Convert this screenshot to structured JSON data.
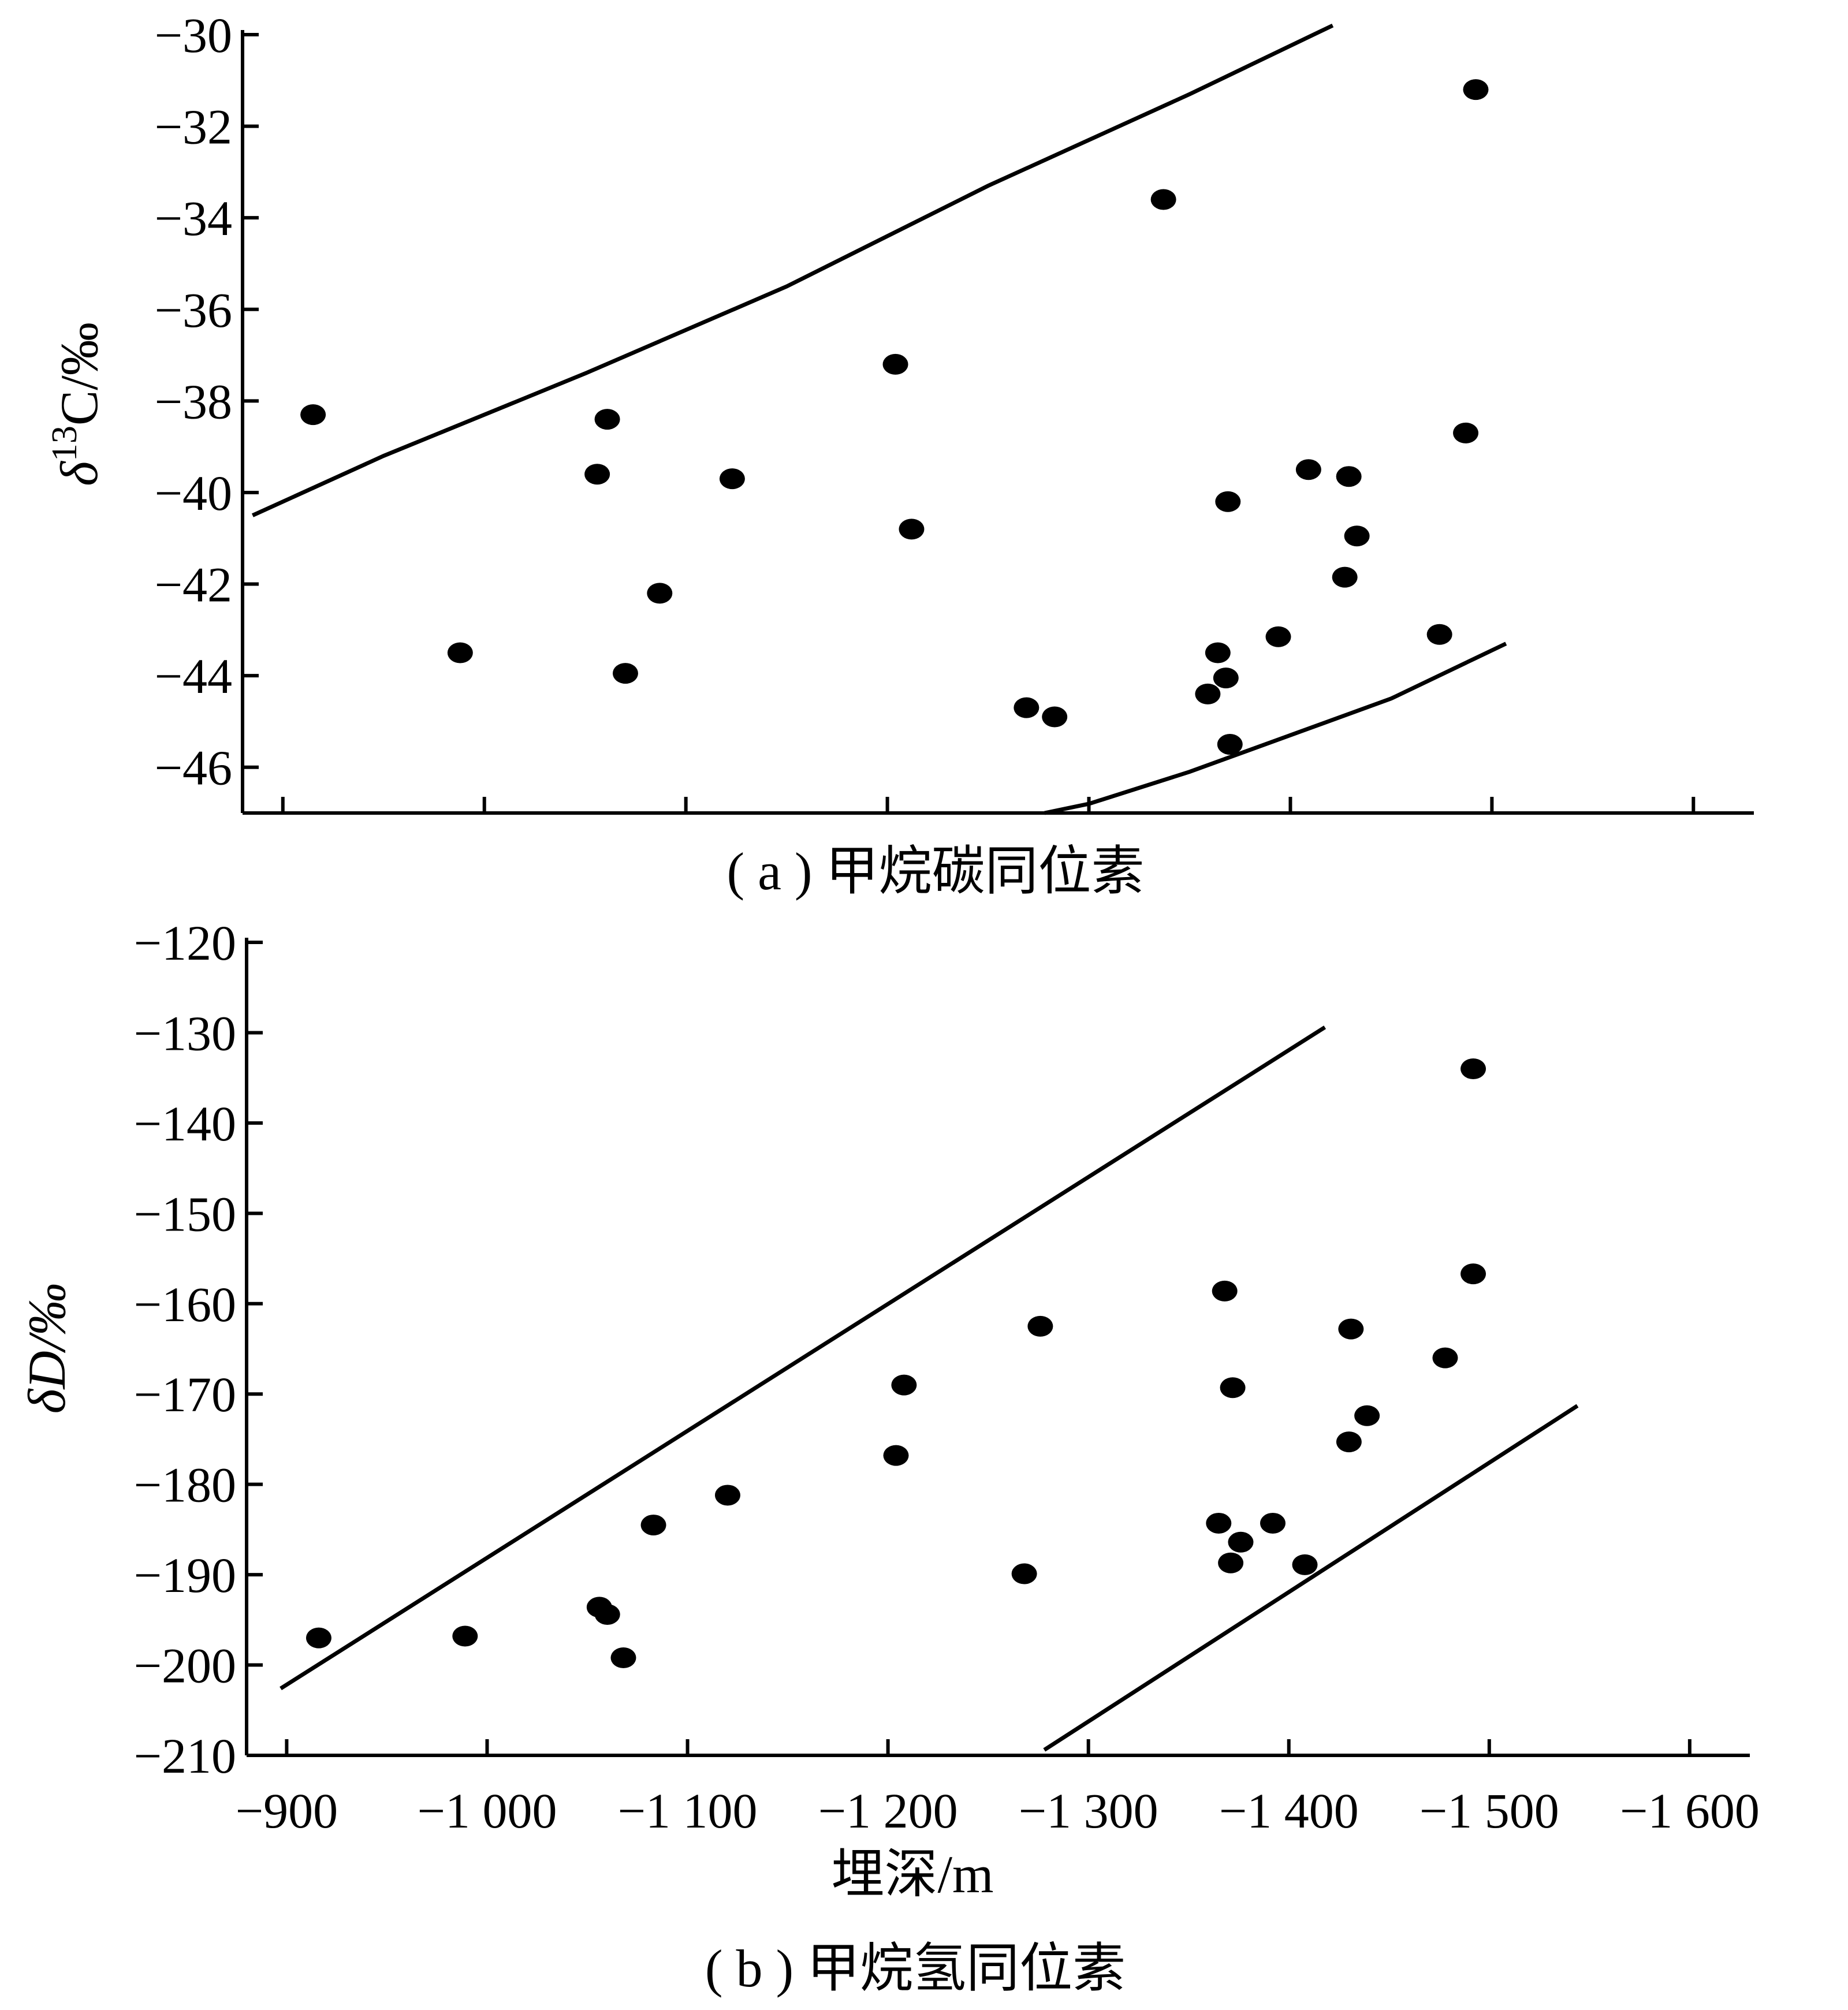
{
  "chart_data": [
    {
      "type": "scatter",
      "caption": "( a ) 甲烷碳同位素",
      "ylabel_prefix": "δ",
      "ylabel_sup": "13",
      "ylabel_suffix": "C/‰",
      "xlim": [
        -880,
        -1630
      ],
      "ylim": [
        -47,
        -30
      ],
      "yticks": [
        -30,
        -32,
        -34,
        -36,
        -38,
        -40,
        -42,
        -44,
        -46
      ],
      "ytick_labels": [
        "−30",
        "−32",
        "−34",
        "−36",
        "−38",
        "−40",
        "−42",
        "−44",
        "−46"
      ],
      "xticks": [
        -900,
        -1000,
        -1100,
        -1200,
        -1300,
        -1400,
        -1500,
        -1600
      ],
      "points": [
        {
          "x": -915,
          "y": -38.3
        },
        {
          "x": -988,
          "y": -43.5
        },
        {
          "x": -1056,
          "y": -39.6
        },
        {
          "x": -1061,
          "y": -38.4
        },
        {
          "x": -1070,
          "y": -43.95
        },
        {
          "x": -1087,
          "y": -42.2
        },
        {
          "x": -1123,
          "y": -39.7
        },
        {
          "x": -1204,
          "y": -37.2
        },
        {
          "x": -1212,
          "y": -40.8
        },
        {
          "x": -1269,
          "y": -44.7
        },
        {
          "x": -1283,
          "y": -44.9
        },
        {
          "x": -1337,
          "y": -33.6
        },
        {
          "x": -1359,
          "y": -44.4
        },
        {
          "x": -1364,
          "y": -43.5
        },
        {
          "x": -1368,
          "y": -44.05
        },
        {
          "x": -1369,
          "y": -40.2
        },
        {
          "x": -1370,
          "y": -45.5
        },
        {
          "x": -1394,
          "y": -43.15
        },
        {
          "x": -1409,
          "y": -39.5
        },
        {
          "x": -1427,
          "y": -41.85
        },
        {
          "x": -1429,
          "y": -39.65
        },
        {
          "x": -1433,
          "y": -40.95
        },
        {
          "x": -1474,
          "y": -43.1
        },
        {
          "x": -1487,
          "y": -38.7
        },
        {
          "x": -1492,
          "y": -31.2
        }
      ],
      "boundary_lines": [
        {
          "x": [
            -885,
            -950,
            -1050,
            -1150,
            -1250,
            -1350,
            -1421
          ],
          "y": [
            -40.5,
            -39.2,
            -37.4,
            -35.5,
            -33.3,
            -31.3,
            -29.8
          ]
        },
        {
          "x": [
            -1278,
            -1300,
            -1350,
            -1400,
            -1450,
            -1507
          ],
          "y": [
            -47.0,
            -46.8,
            -46.1,
            -45.3,
            -44.5,
            -43.3
          ]
        }
      ]
    },
    {
      "type": "scatter",
      "caption": "( b ) 甲烷氢同位素",
      "ylabel": "δD/‰",
      "xlabel": "埋深/m",
      "xlim": [
        -880,
        -1630
      ],
      "ylim": [
        -210,
        -120
      ],
      "yticks": [
        -120,
        -130,
        -140,
        -150,
        -160,
        -170,
        -180,
        -190,
        -200,
        -210
      ],
      "ytick_labels": [
        "−120",
        "−130",
        "−140",
        "−150",
        "−160",
        "−170",
        "−180",
        "−190",
        "−200",
        "−210"
      ],
      "xticks": [
        -900,
        -1000,
        -1100,
        -1200,
        -1300,
        -1400,
        -1500,
        -1600
      ],
      "xtick_labels": [
        "−900",
        "−1 000",
        "−1 100",
        "−1 200",
        "−1 300",
        "−1 400",
        "−1 500",
        "−1 600"
      ],
      "points": [
        {
          "x": -916,
          "y": -197.0
        },
        {
          "x": -989,
          "y": -196.8
        },
        {
          "x": -1056,
          "y": -193.6
        },
        {
          "x": -1060,
          "y": -194.4
        },
        {
          "x": -1068,
          "y": -199.2
        },
        {
          "x": -1083,
          "y": -184.5
        },
        {
          "x": -1120,
          "y": -181.2
        },
        {
          "x": -1204,
          "y": -176.8
        },
        {
          "x": -1208,
          "y": -169.0
        },
        {
          "x": -1268,
          "y": -189.9
        },
        {
          "x": -1276,
          "y": -162.5
        },
        {
          "x": -1365,
          "y": -184.3
        },
        {
          "x": -1368,
          "y": -158.6
        },
        {
          "x": -1371,
          "y": -188.7
        },
        {
          "x": -1372,
          "y": -169.3
        },
        {
          "x": -1376,
          "y": -186.4
        },
        {
          "x": -1392,
          "y": -184.3
        },
        {
          "x": -1408,
          "y": -188.9
        },
        {
          "x": -1430,
          "y": -175.3
        },
        {
          "x": -1431,
          "y": -162.8
        },
        {
          "x": -1439,
          "y": -172.4
        },
        {
          "x": -1478,
          "y": -166.0
        },
        {
          "x": -1492,
          "y": -156.7
        },
        {
          "x": -1492,
          "y": -134.0
        }
      ],
      "boundary_lines": [
        {
          "x": [
            -897,
            -1418
          ],
          "y": [
            -202.6,
            -129.4
          ]
        },
        {
          "x": [
            -1278,
            -1544
          ],
          "y": [
            -209.4,
            -171.3
          ]
        }
      ]
    }
  ]
}
